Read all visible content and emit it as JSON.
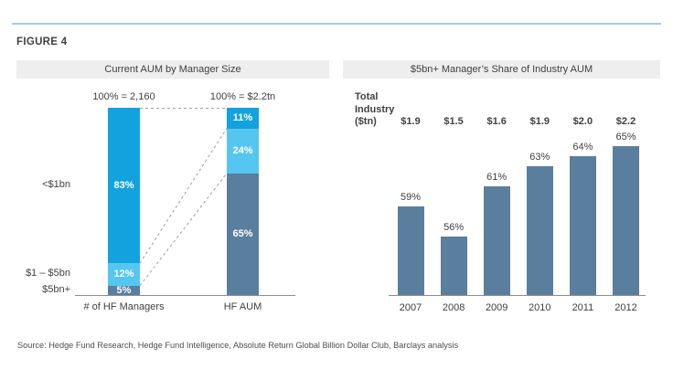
{
  "figure_label": "FIGURE 4",
  "source_note": "Source: Hedge Fund Research, Hedge Fund Intelligence, Absolute Return Global Billion Dollar Club, Barclays analysis",
  "colors": {
    "bright_blue": "#12A3DF",
    "light_blue": "#55C6EF",
    "slate_blue": "#5A7E9E",
    "header_bg": "#EEEEEE",
    "text_dark": "#414042",
    "axis_gray": "#8C8C8C",
    "dashed_gray": "#9E9E9E",
    "rule_blue": "#A5CBDD",
    "segment_label_white": "#FFFFFF"
  },
  "left_panel": {
    "title": "Current AUM by Manager Size"
  },
  "right_panel": {
    "title": "$5bn+ Manager’s Share of Industry AUM"
  },
  "chart_data": [
    {
      "type": "bar",
      "subtype": "stacked-100pct-with-connectors",
      "title": "Current AUM by Manager Size",
      "categories": [
        "# of HF Managers",
        "HF AUM"
      ],
      "column_totals": [
        "100% = 2,160",
        "100% = $2.2tn"
      ],
      "series": [
        {
          "name": "<$1bn",
          "color_key": "bright_blue",
          "values": [
            83,
            11
          ]
        },
        {
          "name": "$1 – $5bn",
          "color_key": "light_blue",
          "values": [
            12,
            24
          ]
        },
        {
          "name": "$5bn+",
          "color_key": "slate_blue",
          "values": [
            5,
            65
          ]
        }
      ],
      "value_suffix": "%",
      "ylim": [
        0,
        100
      ]
    },
    {
      "type": "bar",
      "title": "$5bn+ Manager’s Share of Industry AUM",
      "categories": [
        "2007",
        "2008",
        "2009",
        "2010",
        "2011",
        "2012"
      ],
      "values": [
        59,
        56,
        61,
        63,
        64,
        65
      ],
      "bar_labels": [
        "59%",
        "56%",
        "61%",
        "63%",
        "64%",
        "65%"
      ],
      "total_industry_header": [
        "Total",
        "Industry",
        "($tn)"
      ],
      "total_industry_values": [
        "$1.9",
        "$1.5",
        "$1.6",
        "$1.9",
        "$2.0",
        "$2.2"
      ],
      "ylim": [
        50,
        66
      ],
      "bar_color_key": "slate_blue"
    }
  ]
}
